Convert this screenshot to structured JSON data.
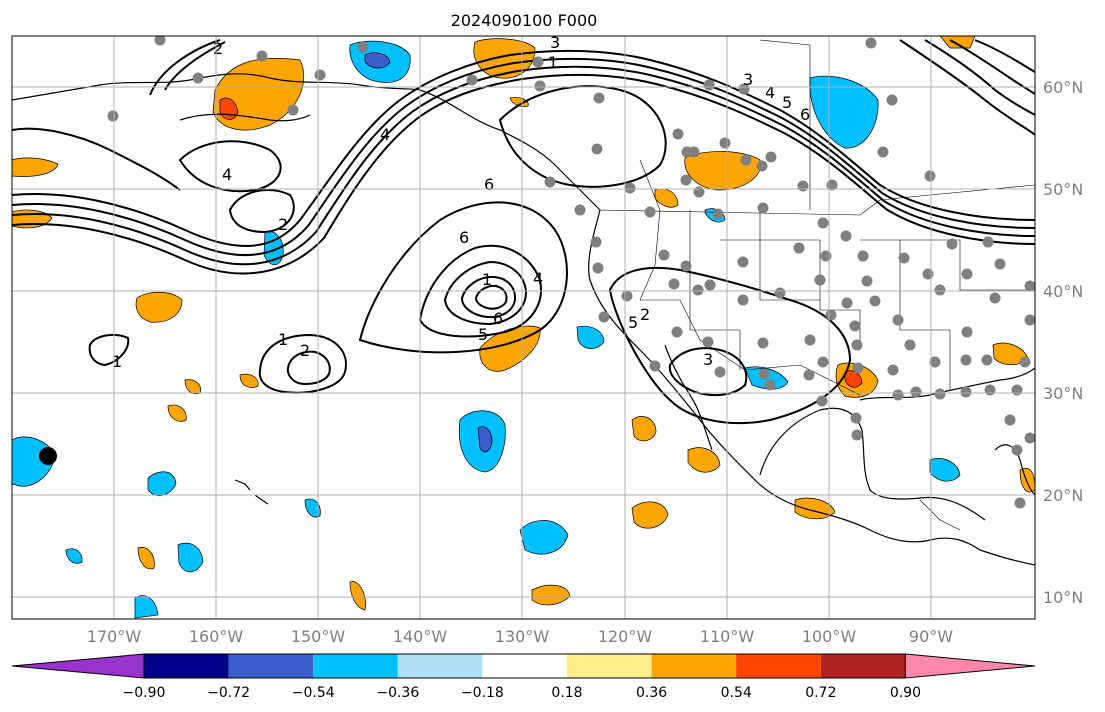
{
  "title": "2024090100 F000",
  "lat_labels": [
    "60°N",
    "50°N",
    "40°N",
    "30°N",
    "20°N",
    "10°N"
  ],
  "lon_labels": [
    "170°W",
    "160°W",
    "150°W",
    "140°W",
    "130°W",
    "120°W",
    "110°W",
    "100°W",
    "90°W"
  ],
  "colorbar": {
    "colors": [
      "#9932cc",
      "#00008b",
      "#3a5fcd",
      "#00bfff",
      "#aedff7",
      "#ffffff",
      "#ffec8b",
      "#ffa500",
      "#ff4500",
      "#b22222",
      "#ff88aa"
    ],
    "tick_labels": [
      "−0.90",
      "−0.72",
      "−0.54",
      "−0.36",
      "−0.18",
      "0.18",
      "0.36",
      "0.54",
      "0.72",
      "0.90"
    ]
  },
  "contour_labels": [
    "1",
    "2",
    "3",
    "4",
    "5",
    "6",
    "2",
    "1",
    "4",
    "6",
    "6",
    "5",
    "4",
    "3",
    "2",
    "1",
    "1",
    "2",
    "3",
    "4",
    "5",
    "6"
  ],
  "colors": {
    "station": "#808080",
    "grid": "#b0b0b0",
    "coast": "#000000",
    "axis_text": "#808080"
  }
}
